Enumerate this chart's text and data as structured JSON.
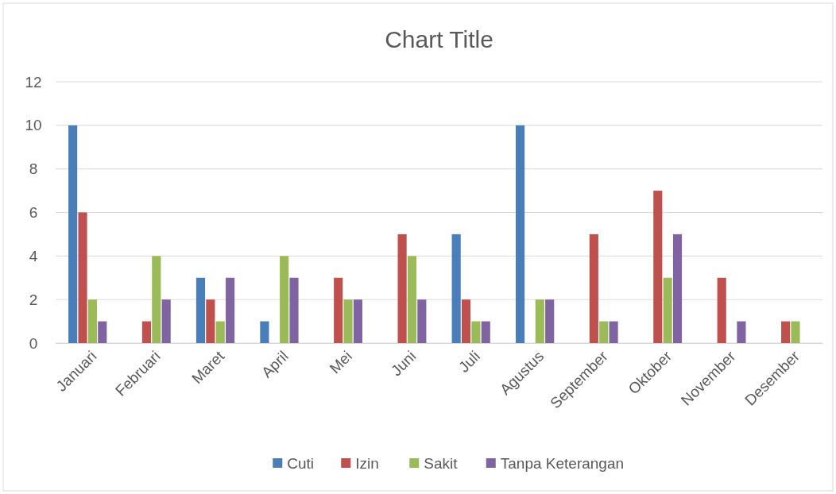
{
  "chart_data": {
    "type": "bar",
    "title": "Chart Title",
    "categories": [
      "Januari",
      "Februari",
      "Maret",
      "April",
      "Mei",
      "Juni",
      "Juli",
      "Agustus",
      "September",
      "Oktober",
      "November",
      "Desember"
    ],
    "series": [
      {
        "name": "Cuti",
        "color": "#4a7ebb",
        "values": [
          10,
          0,
          3,
          1,
          0,
          0,
          5,
          10,
          0,
          0,
          0,
          0
        ]
      },
      {
        "name": "Izin",
        "color": "#c0504d",
        "values": [
          6,
          1,
          2,
          0,
          3,
          5,
          2,
          0,
          5,
          7,
          3,
          1
        ]
      },
      {
        "name": "Sakit",
        "color": "#9bbb59",
        "values": [
          2,
          4,
          1,
          4,
          2,
          4,
          1,
          2,
          1,
          3,
          0,
          1
        ]
      },
      {
        "name": "Tanpa Keterangan",
        "color": "#8064a2",
        "values": [
          1,
          2,
          3,
          3,
          2,
          2,
          1,
          2,
          1,
          5,
          1,
          0
        ]
      }
    ],
    "ylim": [
      0,
      12
    ],
    "yticks": [
      0,
      2,
      4,
      6,
      8,
      10,
      12
    ],
    "grid": "y",
    "legend": "bottom"
  }
}
